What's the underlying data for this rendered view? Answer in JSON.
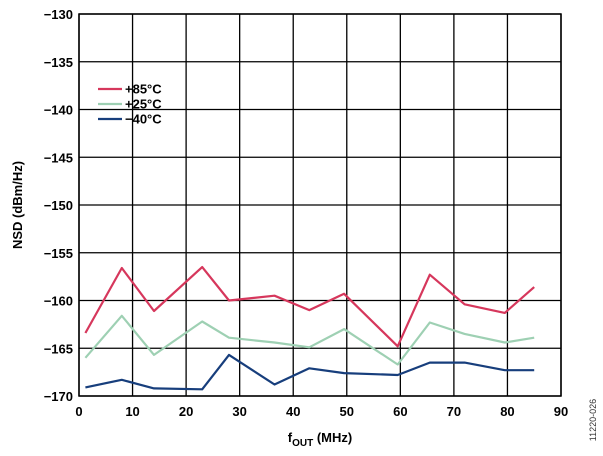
{
  "chart_data": {
    "type": "line",
    "title": "",
    "xlabel_main": "f",
    "xlabel_sub": "OUT",
    "xlabel_unit": " (MHz)",
    "ylabel": "NSD (dBm/Hz)",
    "xlim": [
      0,
      90
    ],
    "ylim": [
      -170,
      -130
    ],
    "xticks": [
      0,
      10,
      20,
      30,
      40,
      50,
      60,
      70,
      80,
      90
    ],
    "yticks": [
      -170,
      -165,
      -160,
      -155,
      -150,
      -145,
      -140,
      -135,
      -130
    ],
    "xtick_labels": [
      "0",
      "10",
      "20",
      "30",
      "40",
      "50",
      "60",
      "70",
      "80",
      "90"
    ],
    "ytick_labels": [
      "−170",
      "−165",
      "−160",
      "−155",
      "−150",
      "−145",
      "−140",
      "−135",
      "−130"
    ],
    "grid": true,
    "legend_position": "top-left",
    "figure_id": "11220-026",
    "series": [
      {
        "name": "+85°C",
        "color": "#d6375c",
        "x": [
          1.2,
          8,
          14,
          23,
          28,
          36.5,
          43,
          49.5,
          59.5,
          65.5,
          72,
          79.5,
          85
        ],
        "y": [
          -163.4,
          -156.6,
          -161.1,
          -156.5,
          -160,
          -159.5,
          -161,
          -159.3,
          -164.8,
          -157.3,
          -160.4,
          -161.3,
          -158.6
        ]
      },
      {
        "name": "+25°C",
        "color": "#9ed0b3",
        "x": [
          1.2,
          8,
          14,
          23,
          28,
          36.5,
          43,
          49.5,
          59.5,
          65.5,
          72,
          79.5,
          85
        ],
        "y": [
          -166,
          -161.6,
          -165.7,
          -162.2,
          -163.9,
          -164.4,
          -164.9,
          -163,
          -166.7,
          -162.3,
          -163.5,
          -164.4,
          -163.9
        ]
      },
      {
        "name": "−40°C",
        "color": "#173e7c",
        "x": [
          1.2,
          8,
          14,
          23,
          28,
          36.5,
          43,
          49.5,
          59.5,
          65.5,
          72,
          79.5,
          85
        ],
        "y": [
          -169.1,
          -168.3,
          -169.2,
          -169.3,
          -165.7,
          -168.8,
          -167.1,
          -167.6,
          -167.8,
          -166.5,
          -166.5,
          -167.3,
          -167.3
        ]
      }
    ]
  }
}
